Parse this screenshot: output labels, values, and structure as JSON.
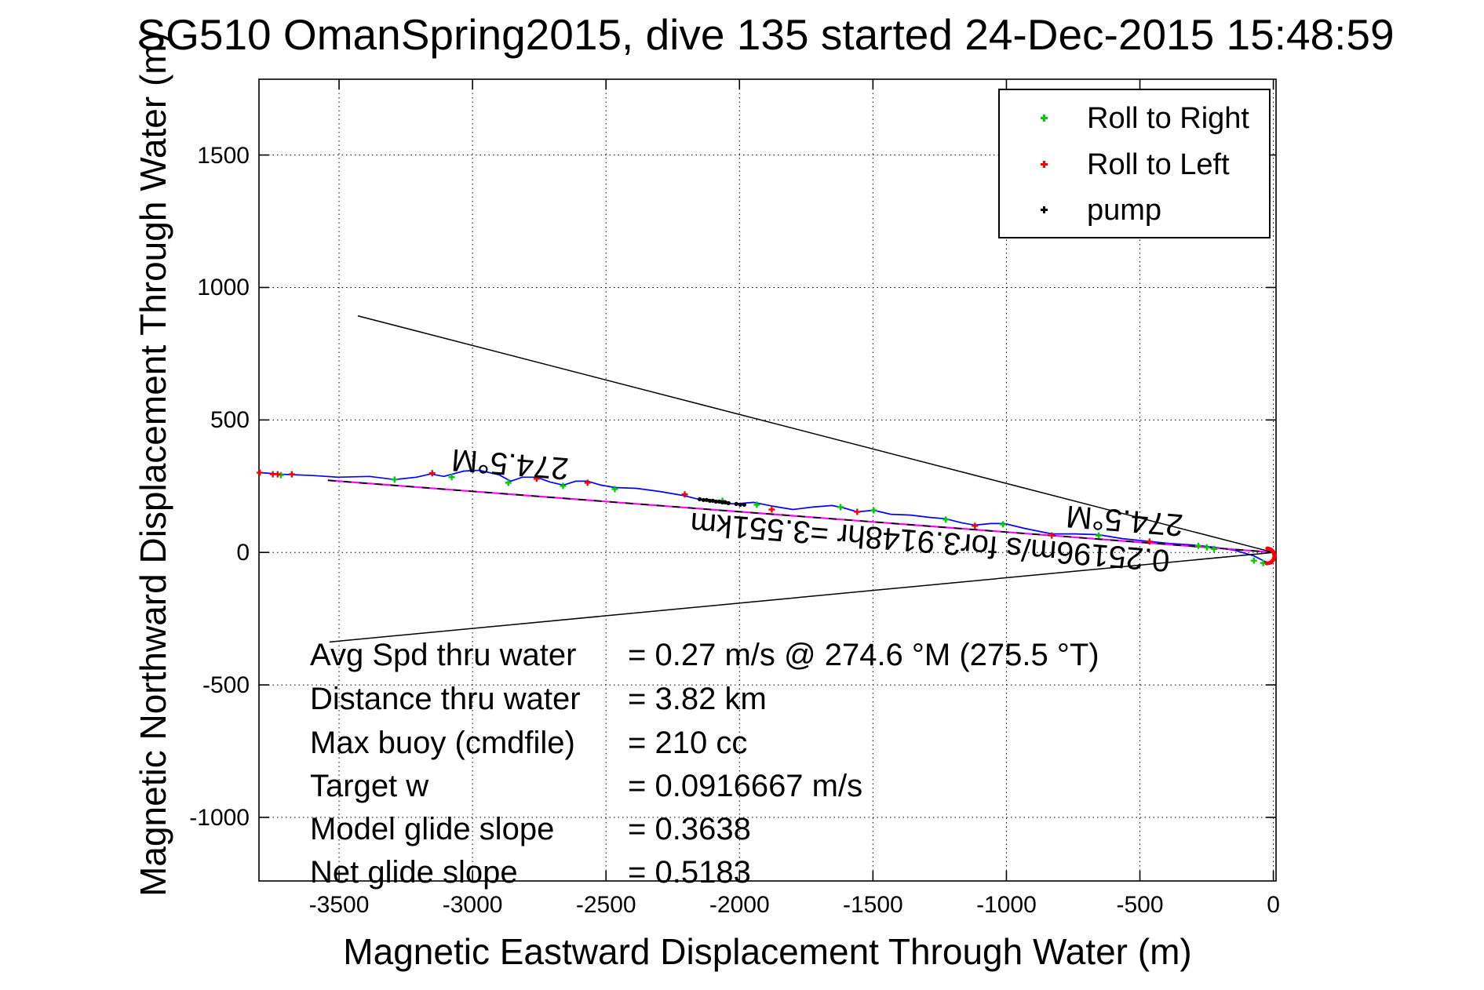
{
  "title": "SG510 OmanSpring2015, dive 135 started 24-Dec-2015 15:48:59",
  "axes": {
    "xlabel": "Magnetic Eastward Displacement Through Water (m)",
    "ylabel": "Magnetic Northward Displacement Through Water (m)"
  },
  "legend": {
    "items": [
      {
        "label": "Roll to Right",
        "color": "#00cc00"
      },
      {
        "label": "Roll to Left",
        "color": "#ff0000"
      },
      {
        "label": "pump",
        "color": "#000000"
      }
    ]
  },
  "stats": {
    "rows": [
      {
        "label": "Avg Spd thru water",
        "value": "=  0.27 m/s @ 274.6 °M (275.5 °T)"
      },
      {
        "label": "Distance thru water",
        "value": "=  3.82 km"
      },
      {
        "label": "Max buoy (cmdfile)",
        "value": "= 210 cc"
      },
      {
        "label": "Target w",
        "value": "= 0.0916667 m/s"
      },
      {
        "label": "Model glide slope",
        "value": "= 0.3638"
      },
      {
        "label": "Net glide slope",
        "value": "= 0.5183"
      }
    ]
  },
  "chart_data": {
    "type": "line",
    "title": "SG510 OmanSpring2015, dive 135 started 24-Dec-2015 15:48:59",
    "xlabel": "Magnetic Eastward Displacement Through Water (m)",
    "ylabel": "Magnetic Northward Displacement Through Water (m)",
    "xlim": [
      -3800,
      10
    ],
    "ylim": [
      -1240,
      1786
    ],
    "xticks": [
      -3500,
      -3000,
      -2500,
      -2000,
      -1500,
      -1000,
      -500,
      0
    ],
    "yticks": [
      -1000,
      -500,
      0,
      500,
      1000,
      1500
    ],
    "grid": "dotted",
    "legend_position": "upper-right",
    "series": [
      {
        "name": "track-through-water",
        "color": "#0000ff",
        "width": 1.7,
        "style": "solid",
        "points": [
          [
            -3797,
            301
          ],
          [
            -3709,
            295
          ],
          [
            -3591,
            290
          ],
          [
            -3503,
            284
          ],
          [
            -3386,
            287
          ],
          [
            -3292,
            275
          ],
          [
            -3210,
            284
          ],
          [
            -3157,
            296
          ],
          [
            -3107,
            287
          ],
          [
            -3033,
            307
          ],
          [
            -2975,
            310
          ],
          [
            -2901,
            293
          ],
          [
            -2857,
            269
          ],
          [
            -2813,
            284
          ],
          [
            -2760,
            284
          ],
          [
            -2710,
            266
          ],
          [
            -2660,
            254
          ],
          [
            -2613,
            269
          ],
          [
            -2569,
            269
          ],
          [
            -2519,
            254
          ],
          [
            -2466,
            245
          ],
          [
            -2387,
            242
          ],
          [
            -2299,
            230
          ],
          [
            -2211,
            215
          ],
          [
            -2143,
            198
          ],
          [
            -2079,
            189
          ],
          [
            -2020,
            183
          ],
          [
            -1947,
            189
          ],
          [
            -1873,
            174
          ],
          [
            -1800,
            162
          ],
          [
            -1726,
            171
          ],
          [
            -1653,
            177
          ],
          [
            -1609,
            168
          ],
          [
            -1559,
            153
          ],
          [
            -1497,
            159
          ],
          [
            -1433,
            144
          ],
          [
            -1359,
            141
          ],
          [
            -1286,
            132
          ],
          [
            -1227,
            127
          ],
          [
            -1168,
            112
          ],
          [
            -1118,
            103
          ],
          [
            -1059,
            109
          ],
          [
            -1007,
            109
          ],
          [
            -933,
            91
          ],
          [
            -830,
            70
          ],
          [
            -742,
            70
          ],
          [
            -654,
            67
          ],
          [
            -566,
            52
          ],
          [
            -478,
            43
          ],
          [
            -390,
            34
          ],
          [
            -302,
            28
          ],
          [
            -214,
            19
          ],
          [
            -141,
            7
          ],
          [
            -73,
            -13
          ],
          [
            -32,
            -34
          ],
          [
            -3,
            -43
          ]
        ]
      },
      {
        "name": "net-course-line",
        "color": "#ff00ff",
        "width": 2.2,
        "style": "solid",
        "overlay_dash_color": "#000000",
        "points": [
          [
            -3542,
            272
          ],
          [
            0,
            0
          ]
        ]
      },
      {
        "name": "bearing-cone-upper",
        "color": "#000000",
        "width": 1.5,
        "style": "solid",
        "points": [
          [
            -3430,
            893
          ],
          [
            0,
            0
          ]
        ]
      },
      {
        "name": "bearing-cone-lower",
        "color": "#000000",
        "width": 1.5,
        "style": "solid",
        "points": [
          [
            -3536,
            -338
          ],
          [
            0,
            0
          ]
        ]
      }
    ],
    "markers": [
      {
        "name": "roll-to-right",
        "color": "#00cc00",
        "shape": "plus",
        "points": [
          [
            -3718,
            292
          ],
          [
            -3292,
            275
          ],
          [
            -3078,
            284
          ],
          [
            -2866,
            263
          ],
          [
            -2661,
            251
          ],
          [
            -2467,
            239
          ],
          [
            -2064,
            195
          ],
          [
            -1935,
            180
          ],
          [
            -1621,
            171
          ],
          [
            -1497,
            159
          ],
          [
            -1227,
            124
          ],
          [
            -1013,
            106
          ],
          [
            -654,
            64
          ],
          [
            -281,
            25
          ],
          [
            -249,
            19
          ],
          [
            -222,
            13
          ],
          [
            -73,
            -31
          ],
          [
            -38,
            -40
          ]
        ]
      },
      {
        "name": "roll-to-left",
        "color": "#ff0000",
        "shape": "plus",
        "points": [
          [
            -3797,
            301
          ],
          [
            -3748,
            295
          ],
          [
            -3730,
            295
          ],
          [
            -3677,
            295
          ],
          [
            -3151,
            299
          ],
          [
            -2760,
            278
          ],
          [
            -2569,
            263
          ],
          [
            -2205,
            219
          ],
          [
            -1879,
            162
          ],
          [
            -1559,
            153
          ],
          [
            -1118,
            100
          ],
          [
            -830,
            64
          ],
          [
            -464,
            41
          ]
        ]
      },
      {
        "name": "pump",
        "color": "#000000",
        "shape": "dot",
        "points": [
          [
            -2149,
            201
          ],
          [
            -2135,
            198
          ],
          [
            -2123,
            198
          ],
          [
            -2111,
            195
          ],
          [
            -2100,
            195
          ],
          [
            -2088,
            192
          ],
          [
            -2076,
            192
          ],
          [
            -2064,
            189
          ],
          [
            -2053,
            189
          ],
          [
            -2041,
            186
          ],
          [
            -2012,
            183
          ],
          [
            -1997,
            180
          ],
          [
            -1982,
            180
          ]
        ]
      }
    ],
    "origin_loop": {
      "color": "#ff0000",
      "cx": -14,
      "cy": -13,
      "r": 28
    },
    "annotations": [
      {
        "text": "274.5°M",
        "x": -2859,
        "y": 335,
        "rot": 184.5
      },
      {
        "text": "274.5°M",
        "x": -557,
        "y": 122,
        "rot": 184.5
      },
      {
        "text": "0.25196m/s for3.9148hr =3.551km",
        "x": -1286,
        "y": 42,
        "rot": 184.5
      }
    ]
  }
}
